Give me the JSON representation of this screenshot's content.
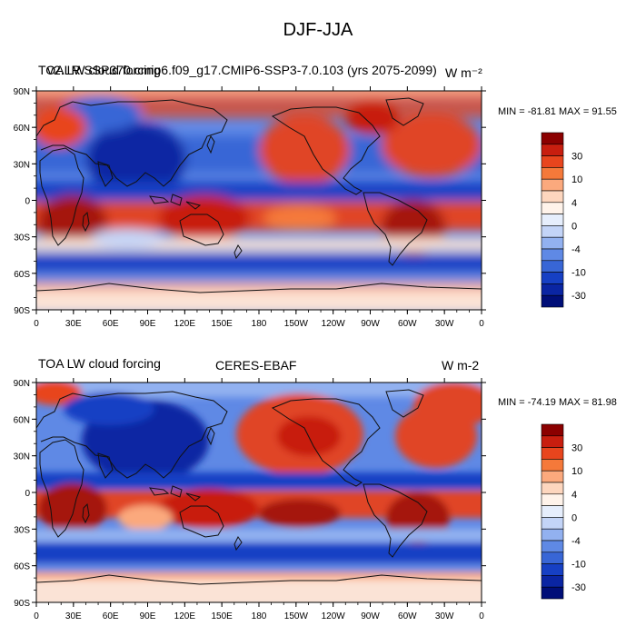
{
  "figure": {
    "title": "DJF-JJA"
  },
  "panels": [
    {
      "left_title": "TOA LW cloud forcing",
      "center_title": "v2.LR.SSP370.cmip6.f09_g17.CMIP6-SSP3-7.0.103 (yrs 2075-2099)",
      "units": "W m⁻²",
      "minmax": "MIN = -81.81 MAX =  91.55"
    },
    {
      "left_title": "TOA LW cloud forcing",
      "center_title": "CERES-EBAF",
      "units": "W m-2",
      "minmax": "MIN = -74.19 MAX =  81.98"
    }
  ],
  "axes": {
    "lat_ticks": [
      "90N",
      "60N",
      "30N",
      "0",
      "30S",
      "60S",
      "90S"
    ],
    "lon_ticks": [
      "0",
      "30E",
      "60E",
      "90E",
      "120E",
      "150E",
      "180",
      "150W",
      "120W",
      "90W",
      "60W",
      "30W",
      "0"
    ]
  },
  "colorbar": {
    "labels": [
      "30",
      "10",
      "4",
      "0",
      "-4",
      "-10",
      "-30"
    ],
    "colors": [
      "#8b0000",
      "#c81e0f",
      "#e8451d",
      "#f5793a",
      "#fba97d",
      "#fdd6be",
      "#fff3ea",
      "#e6eefc",
      "#c3d4f7",
      "#92b1f0",
      "#5f89e5",
      "#3866d6",
      "#1640c4",
      "#0a25a3",
      "#000e78"
    ]
  },
  "palette": {
    "deep_red": "#a5140a",
    "red": "#e04525",
    "light_red": "#f7a787",
    "pale": "#fbe3d6",
    "light_blue": "#a9c1f3",
    "blue": "#3d6bdc",
    "deep_blue": "#0b2aa8",
    "coast": "#111111"
  }
}
